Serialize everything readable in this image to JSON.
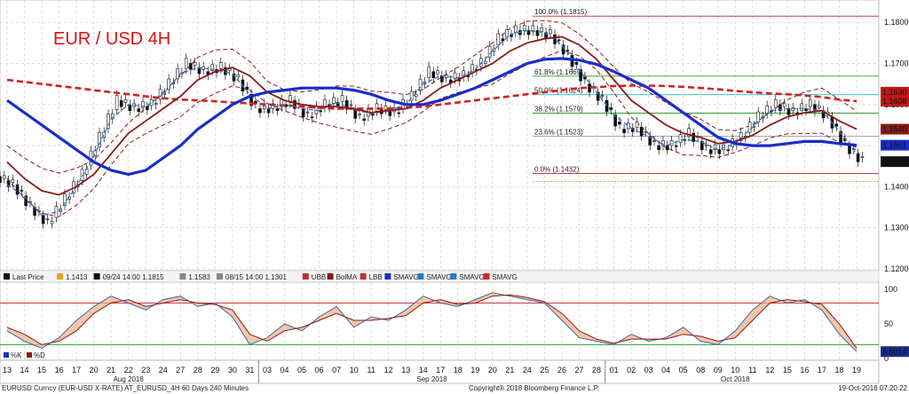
{
  "title": "EUR / USD 4H",
  "colors": {
    "candle": "#111111",
    "bma_red": "#8b1a1a",
    "sma_blue": "#1a2cc8",
    "sma_blue_dash": "#2a78c8",
    "sma_red_dash": "#d42020",
    "band": "#8b1a1a",
    "fib_red": "#c02020",
    "fib_green": "#2aa02a",
    "fib_cyan": "#26b8c8",
    "fib_orange": "#d68a2a"
  },
  "legend": {
    "items": [
      {
        "swatch": "#111111",
        "label": "Last Price"
      },
      {
        "swatch": "#e8a020",
        "label": "1.1413"
      },
      {
        "swatch": "#111111",
        "label": "09/24 14:00 1.1815"
      },
      {
        "swatch": "#888888",
        "label": "1.1583"
      },
      {
        "swatch": "#888888",
        "label": "08/15 14:00 1.1301"
      },
      {
        "swatch": "#c03030",
        "label": "UBB"
      },
      {
        "swatch": "#8b1a1a",
        "label": "BolMA"
      },
      {
        "swatch": "#c03030",
        "label": "LBB"
      },
      {
        "swatch": "#1a2cc8",
        "label": "SMAVG"
      },
      {
        "swatch": "#2a78c8",
        "label": "SMAVG"
      },
      {
        "swatch": "#2a78c8",
        "label": "SMAVG"
      },
      {
        "swatch": "#d42020",
        "label": "SMAVG"
      }
    ]
  },
  "fib_labels": [
    {
      "text": "100.0% (1.1815)",
      "price": 1.1815,
      "color": "#c02020"
    },
    {
      "text": "61.8% (1.1669)",
      "price": 1.1669,
      "color": "#2aa02a"
    },
    {
      "text": "50.0% (1.1624)",
      "price": 1.1624,
      "color": "#26b8c8"
    },
    {
      "text": "38.2% (1.1579)",
      "price": 1.1579,
      "color": "#2aa02a"
    },
    {
      "text": "23.6% (1.1523)",
      "price": 1.1523,
      "color": "#888888"
    },
    {
      "text": "0.0% (1.1432)",
      "price": 1.1432,
      "color": "#c02020"
    }
  ],
  "price_boxes": [
    {
      "text": "1.1630",
      "price": 1.163,
      "bg": "#c01818"
    },
    {
      "text": "1.1608",
      "price": 1.1608,
      "bg": "#c01818"
    },
    {
      "text": "1.1540",
      "price": 1.154,
      "bg": "#8b1a1a"
    },
    {
      "text": "1.1501",
      "price": 1.1501,
      "bg": "#1a2cc8"
    },
    {
      "text": "1.1461",
      "price": 1.1461,
      "bg": "#111111"
    }
  ],
  "osc_legend": [
    {
      "swatch": "#1a2cc8",
      "label": "%K"
    },
    {
      "swatch": "#8b1a1a",
      "label": "%D"
    }
  ],
  "osc_value_box": "6.5014",
  "footer": {
    "left": "EURUSD Curncy (EUR-USD X-RATE) AT_EURUSD_4H 60 Days 240 Minutes",
    "center": "Copyright® 2018 Bloomberg Finance L.P.",
    "right": "19-Oct-2018 07:20:22"
  },
  "chart_data": [
    {
      "type": "line",
      "title": "EUR / USD 4H",
      "x": [
        "13",
        "14",
        "15",
        "16",
        "17",
        "20",
        "21",
        "22",
        "23",
        "24",
        "27",
        "28",
        "29",
        "30",
        "31",
        "03",
        "04",
        "05",
        "06",
        "07",
        "10",
        "11",
        "12",
        "13",
        "14",
        "17",
        "18",
        "19",
        "20",
        "21",
        "24",
        "25",
        "26",
        "27",
        "28",
        "01",
        "02",
        "03",
        "04",
        "05",
        "08",
        "09",
        "10",
        "11",
        "12",
        "15",
        "16",
        "17",
        "18",
        "19"
      ],
      "x_groups": [
        {
          "label": "Aug 2018",
          "start": 0,
          "end": 14
        },
        {
          "label": "Sep 2018",
          "start": 15,
          "end": 34
        },
        {
          "label": "Oct 2018",
          "start": 35,
          "end": 49
        }
      ],
      "ylim": [
        1.12,
        1.185
      ],
      "yticks": [
        1.12,
        1.13,
        1.14,
        1.15,
        1.16,
        1.17,
        1.18
      ],
      "ytick_labels": [
        "1.1200",
        "1.1300",
        "1.1400",
        "1.1500",
        "1.1600",
        "1.1700",
        "1.1800"
      ],
      "grid": true,
      "series": [
        {
          "name": "Last Price",
          "values": [
            1.1405,
            1.135,
            1.131,
            1.137,
            1.143,
            1.152,
            1.161,
            1.159,
            1.16,
            1.165,
            1.17,
            1.168,
            1.169,
            1.166,
            1.159,
            1.159,
            1.161,
            1.157,
            1.16,
            1.161,
            1.1565,
            1.159,
            1.158,
            1.162,
            1.168,
            1.166,
            1.167,
            1.17,
            1.176,
            1.178,
            1.178,
            1.177,
            1.172,
            1.165,
            1.161,
            1.154,
            1.1545,
            1.15,
            1.15,
            1.153,
            1.149,
            1.149,
            1.152,
            1.157,
            1.16,
            1.158,
            1.16,
            1.157,
            1.15,
            1.1461
          ]
        },
        {
          "name": "BolMA",
          "values": [
            1.146,
            1.142,
            1.139,
            1.138,
            1.14,
            1.143,
            1.148,
            1.153,
            1.156,
            1.159,
            1.162,
            1.166,
            1.168,
            1.169,
            1.167,
            1.163,
            1.161,
            1.16,
            1.1595,
            1.1595,
            1.159,
            1.158,
            1.1585,
            1.159,
            1.161,
            1.164,
            1.166,
            1.168,
            1.17,
            1.173,
            1.175,
            1.176,
            1.1765,
            1.1745,
            1.171,
            1.166,
            1.161,
            1.158,
            1.155,
            1.153,
            1.152,
            1.1505,
            1.151,
            1.1525,
            1.155,
            1.157,
            1.158,
            1.1585,
            1.156,
            1.154
          ]
        },
        {
          "name": "SMAVG",
          "values": [
            1.161,
            1.158,
            1.155,
            1.152,
            1.149,
            1.146,
            1.144,
            1.143,
            1.144,
            1.147,
            1.15,
            1.154,
            1.157,
            1.16,
            1.162,
            1.163,
            1.1635,
            1.164,
            1.164,
            1.164,
            1.1635,
            1.1625,
            1.161,
            1.16,
            1.16,
            1.161,
            1.1625,
            1.164,
            1.166,
            1.168,
            1.17,
            1.171,
            1.1712,
            1.1708,
            1.1698,
            1.168,
            1.166,
            1.164,
            1.161,
            1.158,
            1.155,
            1.152,
            1.1505,
            1.15,
            1.15,
            1.1505,
            1.151,
            1.151,
            1.1505,
            1.1501
          ]
        },
        {
          "name": "SMAVG",
          "values": [
            1.166,
            1.1655,
            1.165,
            1.1645,
            1.164,
            1.1635,
            1.163,
            1.1625,
            1.162,
            1.1615,
            1.1612,
            1.161,
            1.1608,
            1.1605,
            1.1603,
            1.16,
            1.1598,
            1.1595,
            1.1592,
            1.159,
            1.159,
            1.159,
            1.159,
            1.1592,
            1.1595,
            1.16,
            1.1605,
            1.161,
            1.1615,
            1.162,
            1.1625,
            1.163,
            1.1635,
            1.164,
            1.1642,
            1.1645,
            1.1646,
            1.1646,
            1.1645,
            1.1643,
            1.164,
            1.1637,
            1.1633,
            1.163,
            1.1627,
            1.1625,
            1.1622,
            1.1618,
            1.1612,
            1.1608
          ]
        }
      ],
      "price_levels": [
        1.1815,
        1.1669,
        1.1624,
        1.1579,
        1.1523,
        1.1432,
        1.1413
      ]
    },
    {
      "type": "line",
      "title": "",
      "yticks": [
        0,
        50,
        100
      ],
      "ytick_labels": [
        "0",
        "50",
        "100"
      ],
      "ylim": [
        0,
        105
      ],
      "levels": [
        80,
        20
      ],
      "series": [
        {
          "name": "%K",
          "values": [
            40,
            25,
            15,
            30,
            55,
            75,
            90,
            80,
            70,
            85,
            90,
            75,
            80,
            60,
            20,
            30,
            50,
            40,
            60,
            75,
            45,
            60,
            55,
            70,
            90,
            80,
            75,
            85,
            95,
            90,
            85,
            80,
            55,
            30,
            25,
            20,
            35,
            25,
            30,
            45,
            25,
            20,
            40,
            70,
            90,
            80,
            85,
            70,
            35,
            10
          ]
        },
        {
          "name": "%D",
          "values": [
            45,
            35,
            20,
            25,
            40,
            65,
            80,
            85,
            75,
            80,
            85,
            80,
            78,
            70,
            35,
            25,
            40,
            45,
            55,
            65,
            55,
            55,
            58,
            62,
            80,
            85,
            78,
            80,
            90,
            92,
            88,
            82,
            65,
            40,
            28,
            22,
            28,
            28,
            28,
            35,
            32,
            25,
            30,
            55,
            80,
            85,
            82,
            78,
            50,
            15
          ]
        }
      ]
    }
  ]
}
